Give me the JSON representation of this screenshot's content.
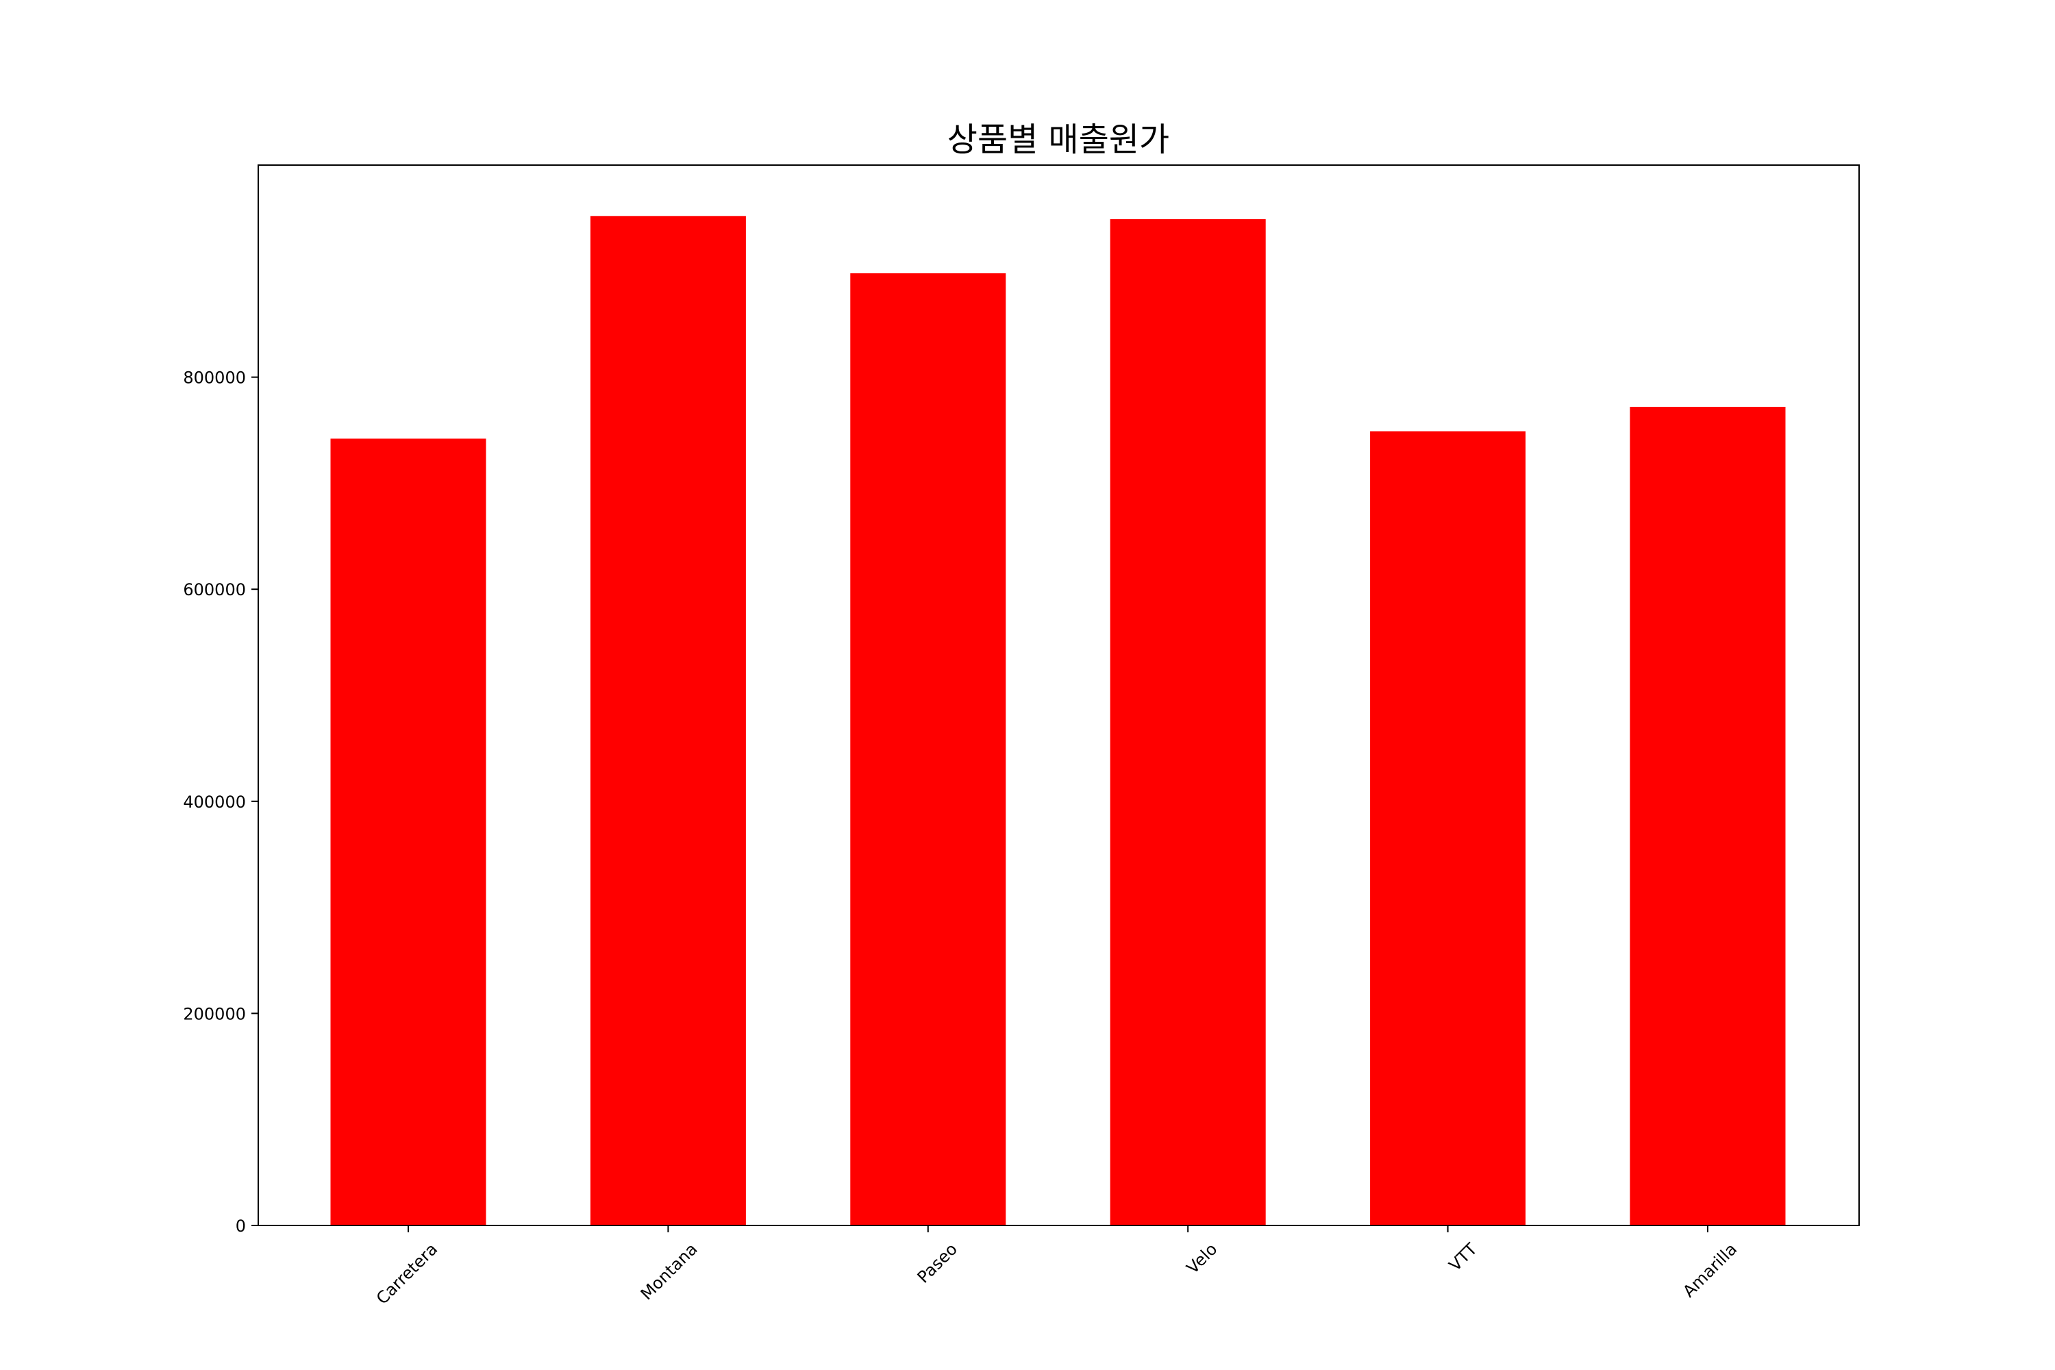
{
  "chart_data": {
    "type": "bar",
    "title": "상품별 매출원가",
    "xlabel": "",
    "ylabel": "",
    "categories": [
      "Carretera",
      "Montana",
      "Paseo",
      "Velo",
      "VTT",
      "Amarilla"
    ],
    "values": [
      742000,
      952000,
      898000,
      949000,
      749000,
      772000
    ],
    "ylim": [
      0,
      1000000
    ],
    "yticks": [
      0,
      200000,
      400000,
      600000,
      800000
    ],
    "ytick_labels": [
      "0",
      "200000",
      "400000",
      "600000",
      "800000"
    ],
    "bar_color": "#ff0000",
    "grid": false,
    "legend": "none"
  }
}
